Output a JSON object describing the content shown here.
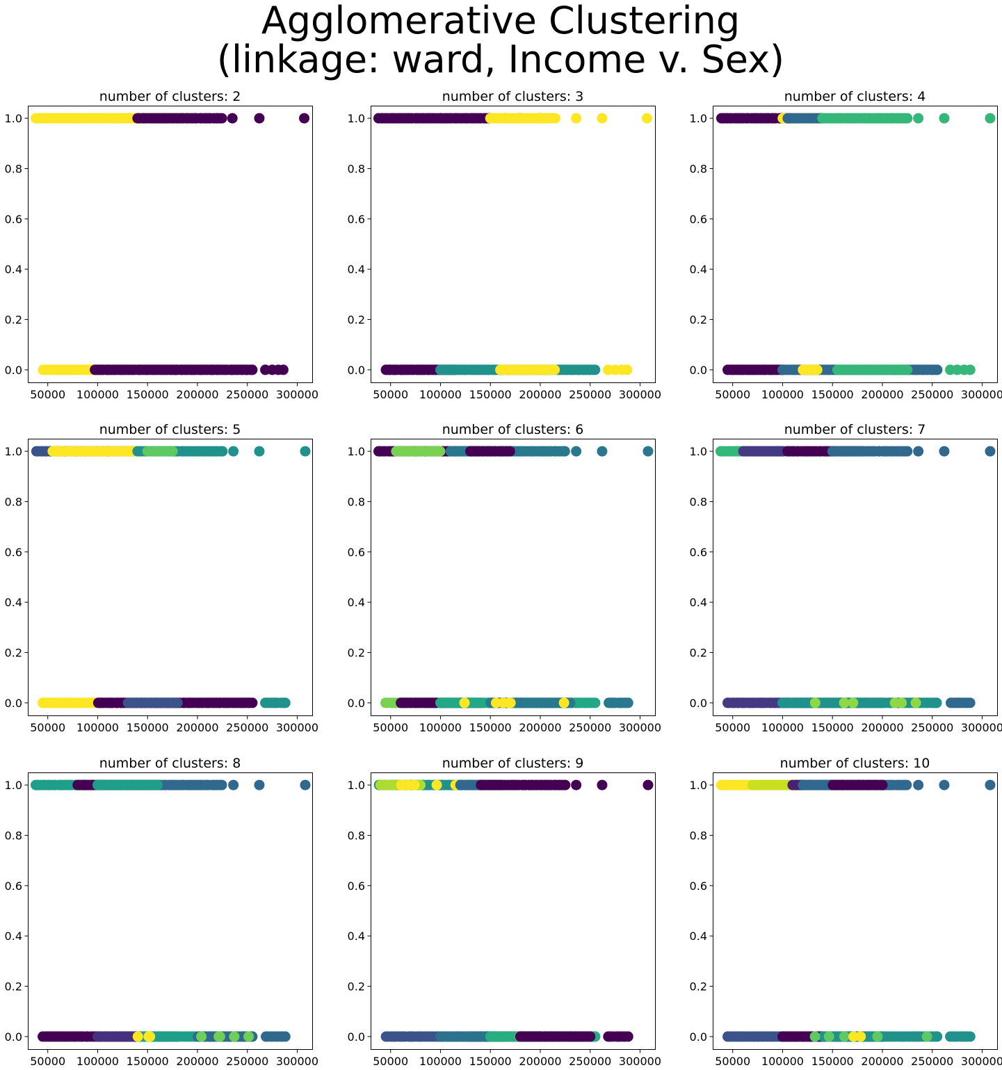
{
  "figure": {
    "suptitle_line1": "Agglomerative Clustering",
    "suptitle_line2": "(linkage: ward, Income v. Sex)"
  },
  "colors": {
    "viridis": [
      "#440154",
      "#482878",
      "#3e4a89",
      "#31688e",
      "#26828e",
      "#1f9e89",
      "#35b779",
      "#6ece58",
      "#b5de2b",
      "#fde725"
    ]
  },
  "chart_data": [
    {
      "type": "scatter",
      "title": "number of clusters: 2",
      "xlim": [
        30000,
        315000
      ],
      "ylim": [
        -0.05,
        1.05
      ],
      "xticks": [
        50000,
        100000,
        150000,
        200000,
        250000,
        300000
      ],
      "yticks": [
        0.0,
        0.2,
        0.4,
        0.6,
        0.8,
        1.0
      ],
      "points": [
        {
          "y": 1,
          "xmin": 38000,
          "xmax": 190000,
          "color": "#fde725"
        },
        {
          "y": 1,
          "xmin": 140000,
          "xmax": 225000,
          "color": "#440154",
          "x_extra": [
            235000,
            262000,
            307000
          ]
        },
        {
          "y": 0,
          "xmin": 45000,
          "xmax": 130000,
          "color": "#fde725",
          "x_extra": [
            165000,
            178000
          ]
        },
        {
          "y": 0,
          "xmin": 97000,
          "xmax": 255000,
          "color": "#440154",
          "x_extra": [
            268000,
            275000,
            281000,
            286000
          ]
        }
      ]
    },
    {
      "type": "scatter",
      "title": "number of clusters: 3",
      "xlim": [
        30000,
        315000
      ],
      "ylim": [
        -0.05,
        1.05
      ],
      "xticks": [
        50000,
        100000,
        150000,
        200000,
        250000,
        300000
      ],
      "yticks": [
        0.0,
        0.2,
        0.4,
        0.6,
        0.8,
        1.0
      ],
      "points": [
        {
          "y": 1,
          "xmin": 38000,
          "xmax": 150000,
          "color": "#440154",
          "x_extra": [
            165000,
            180000,
            200000
          ]
        },
        {
          "y": 1,
          "xmin": 150000,
          "xmax": 215000,
          "color": "#fde725",
          "x_extra": [
            236000,
            262000,
            307000
          ]
        },
        {
          "y": 0,
          "xmin": 45000,
          "xmax": 115000,
          "color": "#440154"
        },
        {
          "y": 0,
          "xmin": 100000,
          "xmax": 255000,
          "color": "#21918c"
        },
        {
          "y": 0,
          "xmin": 160000,
          "xmax": 215000,
          "color": "#fde725",
          "x_extra": [
            268000,
            275000,
            282000,
            287000
          ]
        }
      ]
    },
    {
      "type": "scatter",
      "title": "number of clusters: 4",
      "xlim": [
        30000,
        315000
      ],
      "ylim": [
        -0.05,
        1.05
      ],
      "xticks": [
        50000,
        100000,
        150000,
        200000,
        250000,
        300000
      ],
      "yticks": [
        0.0,
        0.2,
        0.4,
        0.6,
        0.8,
        1.0
      ],
      "points": [
        {
          "y": 1,
          "xmin": 38000,
          "xmax": 110000,
          "color": "#440154"
        },
        {
          "y": 1,
          "xmin": 100000,
          "xmax": 140000,
          "color": "#fde725"
        },
        {
          "y": 1,
          "xmin": 105000,
          "xmax": 140000,
          "color": "#31688e"
        },
        {
          "y": 1,
          "xmin": 140000,
          "xmax": 225000,
          "color": "#35b779",
          "x_extra": [
            236000,
            262000,
            308000
          ]
        },
        {
          "y": 0,
          "xmin": 45000,
          "xmax": 100000,
          "color": "#440154"
        },
        {
          "y": 0,
          "xmin": 100000,
          "xmax": 255000,
          "color": "#31688e"
        },
        {
          "y": 0,
          "xmin": 155000,
          "xmax": 225000,
          "color": "#35b779",
          "x_extra": [
            268000,
            275000,
            282000,
            288000
          ]
        },
        {
          "y": 0,
          "xmin": 120000,
          "xmax": 135000,
          "color": "#fde725"
        }
      ]
    },
    {
      "type": "scatter",
      "title": "number of clusters: 5",
      "xlim": [
        30000,
        315000
      ],
      "ylim": [
        -0.05,
        1.05
      ],
      "xticks": [
        50000,
        100000,
        150000,
        200000,
        250000,
        300000
      ],
      "yticks": [
        0.0,
        0.2,
        0.4,
        0.6,
        0.8,
        1.0
      ],
      "points": [
        {
          "y": 1,
          "xmin": 38000,
          "xmax": 135000,
          "color": "#3b528b"
        },
        {
          "y": 1,
          "xmin": 55000,
          "xmax": 150000,
          "color": "#fde725"
        },
        {
          "y": 1,
          "xmin": 140000,
          "xmax": 225000,
          "color": "#21918c",
          "x_extra": [
            236000,
            262000,
            308000
          ]
        },
        {
          "y": 1,
          "xmin": 150000,
          "xmax": 175000,
          "color": "#5ec962"
        },
        {
          "y": 0,
          "xmin": 45000,
          "xmax": 125000,
          "color": "#fde725"
        },
        {
          "y": 0,
          "xmin": 100000,
          "xmax": 255000,
          "color": "#440154"
        },
        {
          "y": 0,
          "xmin": 130000,
          "xmax": 180000,
          "color": "#3b528b"
        },
        {
          "y": 0,
          "xmin": 268000,
          "xmax": 288000,
          "color": "#21918c"
        }
      ]
    },
    {
      "type": "scatter",
      "title": "number of clusters: 6",
      "xlim": [
        30000,
        315000
      ],
      "ylim": [
        -0.05,
        1.05
      ],
      "xticks": [
        50000,
        100000,
        150000,
        200000,
        250000,
        300000
      ],
      "yticks": [
        0.0,
        0.2,
        0.4,
        0.6,
        0.8,
        1.0
      ],
      "points": [
        {
          "y": 1,
          "xmin": 38000,
          "xmax": 140000,
          "color": "#440154"
        },
        {
          "y": 1,
          "xmin": 55000,
          "xmax": 100000,
          "color": "#7ad151"
        },
        {
          "y": 1,
          "xmin": 110000,
          "xmax": 225000,
          "color": "#2a788e",
          "x_extra": [
            236000,
            262000,
            308000
          ]
        },
        {
          "y": 1,
          "xmin": 130000,
          "xmax": 170000,
          "color": "#440154"
        },
        {
          "y": 0,
          "xmin": 45000,
          "xmax": 110000,
          "color": "#7ad151"
        },
        {
          "y": 0,
          "xmin": 60000,
          "xmax": 140000,
          "color": "#440154"
        },
        {
          "y": 0,
          "xmin": 100000,
          "xmax": 255000,
          "color": "#22a884"
        },
        {
          "y": 0,
          "xmin": 150000,
          "xmax": 230000,
          "color": "#2a788e"
        },
        {
          "y": 0,
          "xmin": 105000,
          "xmax": 250000,
          "color": "#fde725",
          "count": 6
        },
        {
          "y": 0,
          "xmin": 268000,
          "xmax": 288000,
          "color": "#2a788e"
        }
      ]
    },
    {
      "type": "scatter",
      "title": "number of clusters: 7",
      "xlim": [
        30000,
        315000
      ],
      "ylim": [
        -0.05,
        1.05
      ],
      "xticks": [
        50000,
        100000,
        150000,
        200000,
        250000,
        300000
      ],
      "yticks": [
        0.0,
        0.2,
        0.4,
        0.6,
        0.8,
        1.0
      ],
      "points": [
        {
          "y": 1,
          "xmin": 38000,
          "xmax": 110000,
          "color": "#35b779"
        },
        {
          "y": 1,
          "xmin": 60000,
          "xmax": 100000,
          "color": "#443983"
        },
        {
          "y": 1,
          "xmin": 105000,
          "xmax": 180000,
          "color": "#440154"
        },
        {
          "y": 1,
          "xmin": 150000,
          "xmax": 225000,
          "color": "#31688e",
          "x_extra": [
            236000,
            262000,
            308000
          ]
        },
        {
          "y": 0,
          "xmin": 45000,
          "xmax": 130000,
          "color": "#443983"
        },
        {
          "y": 0,
          "xmin": 100000,
          "xmax": 200000,
          "color": "#31688e"
        },
        {
          "y": 0,
          "xmin": 100000,
          "xmax": 255000,
          "color": "#21918c"
        },
        {
          "y": 0,
          "xmin": 110000,
          "xmax": 250000,
          "color": "#8fd744",
          "count": 6
        },
        {
          "y": 0,
          "xmin": 268000,
          "xmax": 288000,
          "color": "#31688e"
        }
      ]
    },
    {
      "type": "scatter",
      "title": "number of clusters: 8",
      "xlim": [
        30000,
        315000
      ],
      "ylim": [
        -0.05,
        1.05
      ],
      "xticks": [
        50000,
        100000,
        150000,
        200000,
        250000,
        300000
      ],
      "yticks": [
        0.0,
        0.2,
        0.4,
        0.6,
        0.8,
        1.0
      ],
      "points": [
        {
          "y": 1,
          "xmin": 38000,
          "xmax": 120000,
          "color": "#1f9e89"
        },
        {
          "y": 1,
          "xmin": 80000,
          "xmax": 160000,
          "color": "#440154"
        },
        {
          "y": 1,
          "xmin": 110000,
          "xmax": 225000,
          "color": "#31688e",
          "x_extra": [
            236000,
            262000,
            308000
          ]
        },
        {
          "y": 1,
          "xmin": 100000,
          "xmax": 160000,
          "color": "#1f9e89"
        },
        {
          "y": 0,
          "xmin": 45000,
          "xmax": 140000,
          "color": "#440154"
        },
        {
          "y": 0,
          "xmin": 100000,
          "xmax": 180000,
          "color": "#46307e"
        },
        {
          "y": 0,
          "xmin": 140000,
          "xmax": 255000,
          "color": "#1f9e89"
        },
        {
          "y": 0,
          "xmin": 200000,
          "xmax": 255000,
          "color": "#31688e"
        },
        {
          "y": 0,
          "xmin": 105000,
          "xmax": 255000,
          "color": "#6ece58",
          "count": 5
        },
        {
          "y": 0,
          "xmin": 120000,
          "xmax": 180000,
          "color": "#fde725",
          "count": 3
        },
        {
          "y": 0,
          "xmin": 268000,
          "xmax": 288000,
          "color": "#31688e"
        }
      ]
    },
    {
      "type": "scatter",
      "title": "number of clusters: 9",
      "xlim": [
        30000,
        315000
      ],
      "ylim": [
        -0.05,
        1.05
      ],
      "xticks": [
        50000,
        100000,
        150000,
        200000,
        250000,
        300000
      ],
      "yticks": [
        0.0,
        0.2,
        0.4,
        0.6,
        0.8,
        1.0
      ],
      "points": [
        {
          "y": 1,
          "xmin": 38000,
          "xmax": 140000,
          "color": "#21918c"
        },
        {
          "y": 1,
          "xmin": 40000,
          "xmax": 80000,
          "color": "#addc30"
        },
        {
          "y": 1,
          "xmin": 60000,
          "xmax": 130000,
          "color": "#fde725",
          "count": 8
        },
        {
          "y": 1,
          "xmin": 120000,
          "xmax": 160000,
          "color": "#31688e"
        },
        {
          "y": 1,
          "xmin": 140000,
          "xmax": 225000,
          "color": "#440154",
          "x_extra": [
            236000,
            262000,
            308000
          ]
        },
        {
          "y": 0,
          "xmin": 45000,
          "xmax": 160000,
          "color": "#3b528b"
        },
        {
          "y": 0,
          "xmin": 130000,
          "xmax": 200000,
          "color": "#472d7b"
        },
        {
          "y": 0,
          "xmin": 100000,
          "xmax": 255000,
          "color": "#2c728e"
        },
        {
          "y": 0,
          "xmin": 150000,
          "xmax": 255000,
          "color": "#27ad81"
        },
        {
          "y": 0,
          "xmin": 160000,
          "xmax": 185000,
          "color": "#fde725",
          "count": 2
        },
        {
          "y": 0,
          "xmin": 180000,
          "xmax": 250000,
          "color": "#440154"
        },
        {
          "y": 0,
          "xmin": 268000,
          "xmax": 288000,
          "color": "#440154"
        }
      ]
    },
    {
      "type": "scatter",
      "title": "number of clusters: 10",
      "xlim": [
        30000,
        315000
      ],
      "ylim": [
        -0.05,
        1.05
      ],
      "xticks": [
        50000,
        100000,
        150000,
        200000,
        250000,
        300000
      ],
      "yticks": [
        0.0,
        0.2,
        0.4,
        0.6,
        0.8,
        1.0
      ],
      "points": [
        {
          "y": 1,
          "xmin": 38000,
          "xmax": 100000,
          "color": "#fde725"
        },
        {
          "y": 1,
          "xmin": 70000,
          "xmax": 120000,
          "color": "#c8e020"
        },
        {
          "y": 1,
          "xmin": 110000,
          "xmax": 160000,
          "color": "#482173"
        },
        {
          "y": 1,
          "xmin": 120000,
          "xmax": 225000,
          "color": "#31688e",
          "x_extra": [
            236000,
            262000,
            308000
          ]
        },
        {
          "y": 1,
          "xmin": 150000,
          "xmax": 200000,
          "color": "#440154"
        },
        {
          "y": 0,
          "xmin": 45000,
          "xmax": 140000,
          "color": "#3b528b"
        },
        {
          "y": 0,
          "xmin": 100000,
          "xmax": 200000,
          "color": "#440154"
        },
        {
          "y": 0,
          "xmin": 140000,
          "xmax": 255000,
          "color": "#21918c"
        },
        {
          "y": 0,
          "xmin": 100000,
          "xmax": 250000,
          "color": "#5ec962",
          "count": 5
        },
        {
          "y": 0,
          "xmin": 160000,
          "xmax": 200000,
          "color": "#fde725",
          "count": 2
        },
        {
          "y": 0,
          "xmin": 268000,
          "xmax": 288000,
          "color": "#21918c"
        }
      ]
    }
  ]
}
